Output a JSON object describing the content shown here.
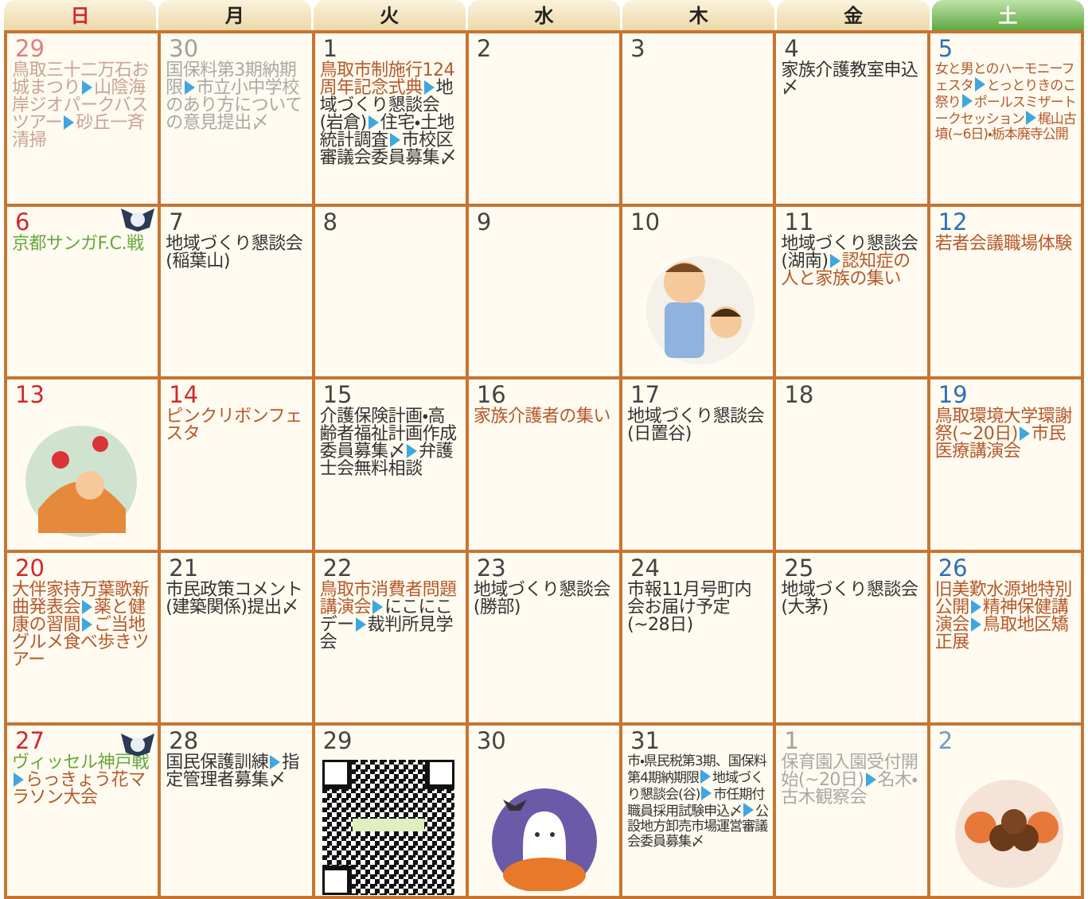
{
  "weekdays": [
    {
      "label": "日",
      "color": "#d0282e"
    },
    {
      "label": "月",
      "color": "#222222"
    },
    {
      "label": "火",
      "color": "#222222"
    },
    {
      "label": "水",
      "color": "#222222"
    },
    {
      "label": "木",
      "color": "#222222"
    },
    {
      "label": "金",
      "color": "#222222"
    },
    {
      "label": "土",
      "color": "#ffffff"
    }
  ],
  "weeks": [
    [
      {
        "day": "29",
        "day_color": "#e08080",
        "events": [
          {
            "text": "鳥取三十二万石お城まつり",
            "color": "#c9a393"
          },
          {
            "text": "山陰海岸ジオパークバスツアー",
            "color": "#c9a393"
          },
          {
            "text": "砂丘一斉清掃",
            "color": "#c9a393"
          }
        ]
      },
      {
        "day": "30",
        "day_color": "#a0a0a0",
        "events": [
          {
            "text": "国保料第3期納期限",
            "color": "#a8a8a8"
          },
          {
            "text": "市立小中学校のあり方についての意見提出〆",
            "color": "#a8a8a8"
          }
        ]
      },
      {
        "day": "1",
        "day_color": "#444444",
        "events": [
          {
            "text": "鳥取市制施行124周年記念式典",
            "color": "#b5582a"
          },
          {
            "text": "地域づくり懇談会(岩倉)",
            "color": "#333333"
          },
          {
            "text": "住宅・土地統計調査",
            "color": "#333333"
          },
          {
            "text": "市校区審議会委員募集〆",
            "color": "#333333"
          }
        ]
      },
      {
        "day": "2",
        "day_color": "#444444",
        "events": []
      },
      {
        "day": "3",
        "day_color": "#444444",
        "events": []
      },
      {
        "day": "4",
        "day_color": "#444444",
        "events": [
          {
            "text": "家族介護教室申込〆",
            "color": "#333333"
          }
        ]
      },
      {
        "day": "5",
        "day_color": "#2f6fb8",
        "events": [
          {
            "text": "女と男とのハーモニーフェスタ",
            "color": "#b5582a"
          },
          {
            "text": "とっとりきのこ祭り",
            "color": "#b5582a"
          },
          {
            "text": "ポールスミザートークセッション",
            "color": "#b5582a"
          },
          {
            "text": "梶山古墳(~6日)・栃本廃寺公開",
            "color": "#b5582a"
          }
        ]
      }
    ],
    [
      {
        "day": "6",
        "day_color": "#d0282e",
        "events": [
          {
            "text": "京都サンガF.C.戦",
            "color": "#66a83a"
          }
        ]
      },
      {
        "day": "7",
        "day_color": "#444444",
        "events": [
          {
            "text": "地域づくり懇談会(稲葉山)",
            "color": "#333333"
          }
        ]
      },
      {
        "day": "8",
        "day_color": "#444444",
        "events": []
      },
      {
        "day": "9",
        "day_color": "#444444",
        "events": []
      },
      {
        "day": "10",
        "day_color": "#444444",
        "events": []
      },
      {
        "day": "11",
        "day_color": "#444444",
        "events": [
          {
            "text": "地域づくり懇談会(湖南)",
            "color": "#333333"
          },
          {
            "text": "認知症の人と家族の集い",
            "color": "#b5582a"
          }
        ]
      },
      {
        "day": "12",
        "day_color": "#2f6fb8",
        "events": [
          {
            "text": "若者会議職場体験",
            "color": "#b5582a"
          }
        ]
      }
    ],
    [
      {
        "day": "13",
        "day_color": "#d0282e",
        "events": []
      },
      {
        "day": "14",
        "day_color": "#d0282e",
        "events": [
          {
            "text": "ピンクリボンフェスタ",
            "color": "#b5582a"
          }
        ]
      },
      {
        "day": "15",
        "day_color": "#444444",
        "events": [
          {
            "text": "介護保険計画・高齢者福祉計画作成委員募集〆",
            "color": "#333333"
          },
          {
            "text": "弁護士会無料相談",
            "color": "#333333"
          }
        ]
      },
      {
        "day": "16",
        "day_color": "#444444",
        "events": [
          {
            "text": "家族介護者の集い",
            "color": "#b5582a"
          }
        ]
      },
      {
        "day": "17",
        "day_color": "#444444",
        "events": [
          {
            "text": "地域づくり懇談会(日置谷)",
            "color": "#333333"
          }
        ]
      },
      {
        "day": "18",
        "day_color": "#444444",
        "events": []
      },
      {
        "day": "19",
        "day_color": "#2f6fb8",
        "events": [
          {
            "text": "鳥取環境大学環謝祭(~20日)",
            "color": "#b5582a"
          },
          {
            "text": "市民医療講演会",
            "color": "#b5582a"
          }
        ]
      }
    ],
    [
      {
        "day": "20",
        "day_color": "#d0282e",
        "events": [
          {
            "text": "大伴家持万葉歌新曲発表会",
            "color": "#b5582a"
          },
          {
            "text": "薬と健康の習間",
            "color": "#b5582a"
          },
          {
            "text": "ご当地グルメ食べ歩きツアー",
            "color": "#b5582a"
          }
        ]
      },
      {
        "day": "21",
        "day_color": "#444444",
        "events": [
          {
            "text": "市民政策コメント(建築関係)提出〆",
            "color": "#333333"
          }
        ]
      },
      {
        "day": "22",
        "day_color": "#444444",
        "events": [
          {
            "text": "鳥取市消費者問題講演会",
            "color": "#b5582a"
          },
          {
            "text": "にこにこデー",
            "color": "#333333"
          },
          {
            "text": "裁判所見学会",
            "color": "#333333"
          }
        ]
      },
      {
        "day": "23",
        "day_color": "#444444",
        "events": [
          {
            "text": "地域づくり懇談会(勝部)",
            "color": "#333333"
          }
        ]
      },
      {
        "day": "24",
        "day_color": "#444444",
        "events": [
          {
            "text": "市報11月号町内会お届け予定(~28日)",
            "color": "#333333"
          }
        ]
      },
      {
        "day": "25",
        "day_color": "#444444",
        "events": [
          {
            "text": "地域づくり懇談会(大茅)",
            "color": "#333333"
          }
        ]
      },
      {
        "day": "26",
        "day_color": "#2f6fb8",
        "events": [
          {
            "text": "旧美歎水源地特別公開",
            "color": "#b5582a"
          },
          {
            "text": "精神保健講演会",
            "color": "#b5582a"
          },
          {
            "text": "鳥取地区矯正展",
            "color": "#b5582a"
          }
        ]
      }
    ],
    [
      {
        "day": "27",
        "day_color": "#d0282e",
        "events": [
          {
            "text": "ヴィッセル神戸戦",
            "color": "#66a83a"
          },
          {
            "text": "らっきょう花マラソン大会",
            "color": "#b5582a"
          }
        ]
      },
      {
        "day": "28",
        "day_color": "#444444",
        "events": [
          {
            "text": "国民保護訓練",
            "color": "#333333"
          },
          {
            "text": "指定管理者募集〆",
            "color": "#333333"
          }
        ]
      },
      {
        "day": "29",
        "day_color": "#444444",
        "events": []
      },
      {
        "day": "30",
        "day_color": "#444444",
        "events": []
      },
      {
        "day": "31",
        "day_color": "#444444",
        "events": [
          {
            "text": "市・県民税第3期、国保料第4期納期限",
            "color": "#333333"
          },
          {
            "text": "地域づくり懇談会(谷)",
            "color": "#333333"
          },
          {
            "text": "市任期付職員採用試験申込〆",
            "color": "#333333"
          },
          {
            "text": "公設地方卸売市場運営審議会委員募集〆",
            "color": "#333333"
          }
        ]
      },
      {
        "day": "1",
        "day_color": "#a0a0a0",
        "events": [
          {
            "text": "保育園入園受付開始(~20日)",
            "color": "#a8a8a8"
          },
          {
            "text": "名木・古木観察会",
            "color": "#a8a8a8"
          }
        ]
      },
      {
        "day": "2",
        "day_color": "#6f9ac8",
        "events": []
      }
    ]
  ]
}
